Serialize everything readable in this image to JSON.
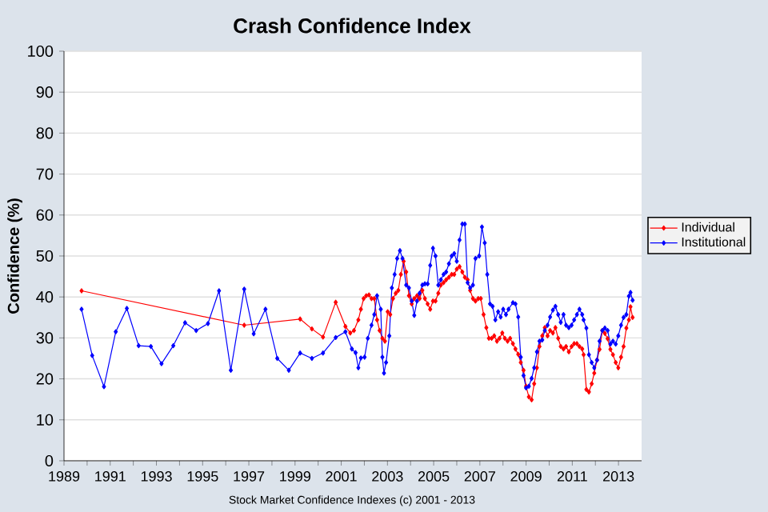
{
  "chart_data": {
    "type": "line",
    "title": "Crash Confidence Index",
    "ylabel": "Confidence (%)",
    "annotations": [
      "Stock Market Confidence Indexes (c) 2001 - 2013"
    ],
    "xlim": [
      1989,
      2014
    ],
    "xticks": [
      1989,
      {
        "value": 1990,
        "label": null
      },
      1991,
      {
        "value": 1992,
        "label": null
      },
      1993,
      {
        "value": 1994,
        "label": null
      },
      1995,
      {
        "value": 1996,
        "label": null
      },
      1997,
      {
        "value": 1998,
        "label": null
      },
      1999,
      {
        "value": 2000,
        "label": null
      },
      2001,
      {
        "value": 2002,
        "label": null
      },
      2003,
      {
        "value": 2004,
        "label": null
      },
      2005,
      {
        "value": 2006,
        "label": null
      },
      2007,
      {
        "value": 2008,
        "label": null
      },
      2009,
      {
        "value": 2010,
        "label": null
      },
      2011,
      {
        "value": 2012,
        "label": null
      },
      2013
    ],
    "ylim": [
      0,
      100
    ],
    "yticks": [
      0,
      10,
      20,
      30,
      40,
      50,
      60,
      70,
      80,
      90,
      100
    ],
    "grid": "y",
    "legend": "right",
    "marker": "diamond",
    "line_style": "solid",
    "series": [
      {
        "name": "Individual",
        "color": "#ff0000",
        "x": [
          1989.76,
          1996.8,
          1999.22,
          1999.73,
          2000.21,
          2000.76,
          2001.18,
          2001.39,
          2001.55,
          2001.74,
          2001.85,
          2001.97,
          2002.08,
          2002.2,
          2002.31,
          2002.43,
          2002.55,
          2002.66,
          2002.78,
          2002.89,
          2003.01,
          2003.12,
          2003.24,
          2003.36,
          2003.47,
          2003.58,
          2003.7,
          2003.81,
          2003.93,
          2004.05,
          2004.16,
          2004.28,
          2004.39,
          2004.51,
          2004.62,
          2004.74,
          2004.85,
          2004.97,
          2005.08,
          2005.2,
          2005.31,
          2005.43,
          2005.54,
          2005.66,
          2005.78,
          2005.89,
          2006.0,
          2006.12,
          2006.24,
          2006.35,
          2006.47,
          2006.58,
          2006.7,
          2006.81,
          2006.93,
          2007.04,
          2007.16,
          2007.28,
          2007.39,
          2007.51,
          2007.62,
          2007.74,
          2007.85,
          2007.97,
          2008.08,
          2008.2,
          2008.31,
          2008.43,
          2008.54,
          2008.66,
          2008.77,
          2008.89,
          2009.0,
          2009.12,
          2009.24,
          2009.35,
          2009.47,
          2009.58,
          2009.7,
          2009.81,
          2009.93,
          2010.04,
          2010.16,
          2010.27,
          2010.39,
          2010.5,
          2010.62,
          2010.73,
          2010.85,
          2010.97,
          2011.08,
          2011.2,
          2011.31,
          2011.43,
          2011.49,
          2011.61,
          2011.72,
          2011.84,
          2011.95,
          2012.07,
          2012.18,
          2012.3,
          2012.41,
          2012.53,
          2012.65,
          2012.76,
          2012.88,
          2012.99,
          2013.11,
          2013.22,
          2013.34,
          2013.45,
          2013.52,
          2013.61
        ],
        "values": [
          41.5,
          33.1,
          34.6,
          32.2,
          30.2,
          38.7,
          32.8,
          31.2,
          31.8,
          34.4,
          37.0,
          39.6,
          40.3,
          40.5,
          39.6,
          39.6,
          34.4,
          31.8,
          29.9,
          29.2,
          36.4,
          35.7,
          39.6,
          40.9,
          41.6,
          45.5,
          48.7,
          46.1,
          40.3,
          38.3,
          39.6,
          40.3,
          39.6,
          41.6,
          39.6,
          38.3,
          37.0,
          39.0,
          39.0,
          40.9,
          42.9,
          43.5,
          44.2,
          44.8,
          45.5,
          45.5,
          46.8,
          47.4,
          46.1,
          44.8,
          44.2,
          41.6,
          39.6,
          39.0,
          39.6,
          39.6,
          35.7,
          32.5,
          29.9,
          29.9,
          30.5,
          29.2,
          29.9,
          31.2,
          29.9,
          29.2,
          29.9,
          28.6,
          27.3,
          26.0,
          24.0,
          22.1,
          18.2,
          15.6,
          14.9,
          18.8,
          22.7,
          27.9,
          30.5,
          32.5,
          30.5,
          31.8,
          31.2,
          32.5,
          29.9,
          27.9,
          27.3,
          27.9,
          26.6,
          27.9,
          28.6,
          28.6,
          27.9,
          27.3,
          25.9,
          17.4,
          16.8,
          18.8,
          21.4,
          24.6,
          27.2,
          31.8,
          31.1,
          29.8,
          27.2,
          25.9,
          24.0,
          22.7,
          25.3,
          27.9,
          32.4,
          34.4,
          37.6,
          35.0
        ]
      },
      {
        "name": "Institutional",
        "color": "#0000ff",
        "x": [
          1989.76,
          1990.22,
          1990.73,
          1991.24,
          1991.72,
          1992.23,
          1992.76,
          1993.22,
          1993.73,
          1994.24,
          1994.72,
          1995.23,
          1995.71,
          1996.22,
          1996.8,
          1997.21,
          1997.72,
          1998.23,
          1998.73,
          1999.22,
          1999.73,
          2000.21,
          2000.76,
          2001.18,
          2001.46,
          2001.62,
          2001.74,
          2001.85,
          2002.01,
          2002.15,
          2002.31,
          2002.43,
          2002.55,
          2002.71,
          2002.78,
          2002.85,
          2002.94,
          2003.08,
          2003.19,
          2003.31,
          2003.42,
          2003.54,
          2003.65,
          2003.81,
          2003.93,
          2004.05,
          2004.16,
          2004.28,
          2004.39,
          2004.51,
          2004.62,
          2004.74,
          2004.85,
          2004.97,
          2005.08,
          2005.2,
          2005.31,
          2005.43,
          2005.54,
          2005.66,
          2005.78,
          2005.89,
          2006.0,
          2006.12,
          2006.24,
          2006.35,
          2006.47,
          2006.58,
          2006.7,
          2006.81,
          2006.97,
          2007.09,
          2007.21,
          2007.32,
          2007.44,
          2007.55,
          2007.67,
          2007.79,
          2007.9,
          2008.01,
          2008.13,
          2008.24,
          2008.43,
          2008.54,
          2008.66,
          2008.77,
          2008.89,
          2009.0,
          2009.12,
          2009.24,
          2009.35,
          2009.47,
          2009.58,
          2009.7,
          2009.81,
          2009.93,
          2010.04,
          2010.16,
          2010.27,
          2010.39,
          2010.5,
          2010.62,
          2010.73,
          2010.85,
          2010.97,
          2011.08,
          2011.2,
          2011.31,
          2011.43,
          2011.49,
          2011.61,
          2011.72,
          2011.84,
          2011.95,
          2012.07,
          2012.18,
          2012.3,
          2012.41,
          2012.53,
          2012.65,
          2012.76,
          2012.88,
          2012.99,
          2013.11,
          2013.22,
          2013.34,
          2013.45,
          2013.52,
          2013.61
        ],
        "values": [
          37.0,
          25.7,
          18.1,
          31.5,
          37.2,
          28.1,
          27.9,
          23.7,
          28.1,
          33.7,
          31.8,
          33.5,
          41.5,
          22.1,
          41.9,
          31.0,
          37.0,
          25.0,
          22.1,
          26.3,
          25.0,
          26.3,
          30.1,
          31.5,
          27.3,
          26.4,
          22.7,
          25.1,
          25.3,
          29.9,
          33.1,
          35.7,
          40.3,
          37.0,
          25.3,
          21.4,
          24.0,
          30.5,
          42.2,
          45.5,
          49.4,
          51.3,
          49.4,
          42.9,
          42.2,
          39.0,
          35.5,
          39.0,
          40.9,
          42.9,
          43.2,
          43.2,
          47.7,
          51.9,
          50.0,
          42.9,
          44.2,
          45.5,
          46.1,
          48.1,
          50.0,
          50.6,
          48.7,
          53.9,
          57.8,
          57.8,
          43.5,
          42.2,
          42.9,
          49.4,
          50.0,
          57.1,
          53.2,
          45.5,
          38.3,
          37.7,
          34.4,
          36.4,
          35.1,
          37.0,
          35.7,
          37.0,
          38.6,
          38.3,
          35.1,
          25.3,
          20.8,
          17.8,
          18.2,
          20.1,
          22.7,
          26.6,
          29.2,
          29.5,
          31.8,
          33.1,
          35.1,
          36.8,
          37.7,
          35.7,
          33.8,
          35.7,
          33.1,
          32.5,
          33.1,
          34.4,
          35.7,
          37.0,
          35.7,
          34.4,
          32.4,
          25.9,
          24.0,
          22.7,
          24.6,
          29.2,
          31.8,
          32.4,
          31.8,
          28.5,
          29.2,
          28.5,
          30.5,
          33.1,
          35.0,
          35.7,
          40.2,
          41.1,
          39.2
        ]
      }
    ]
  }
}
